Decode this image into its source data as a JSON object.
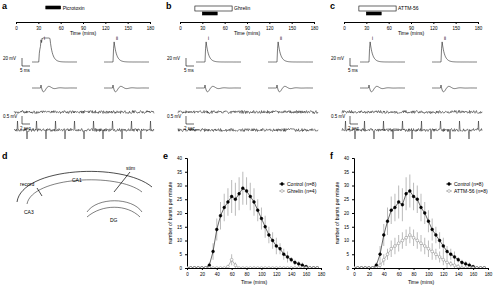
{
  "panel_labels": [
    "a",
    "b",
    "c",
    "d",
    "e",
    "f"
  ],
  "traces": {
    "a": [
      "i",
      "ii",
      "20 mV",
      "5 ms",
      "0.5 mV",
      "2 sec"
    ],
    "b": [
      "i",
      "ii",
      "20 mV",
      "5 ms",
      "0.5 mV",
      "2 sec"
    ],
    "c": [
      "i",
      "ii",
      "20 mV",
      "5 ms",
      "0.5 mV",
      "2 sec"
    ]
  },
  "diagram": {
    "labels": [
      "record",
      "stim",
      "CA1",
      "CA3",
      "DG"
    ]
  },
  "chart_data": [
    {
      "type": "timeline",
      "xlim": [
        0,
        180
      ],
      "xticks": [
        0,
        30,
        60,
        90,
        120,
        150,
        180
      ],
      "x_label": "Time (mins)",
      "bars": [
        {
          "label": "Picrotoxin",
          "start": 40,
          "end": 60,
          "color": "#000000"
        }
      ]
    },
    {
      "type": "timeline",
      "xlim": [
        0,
        180
      ],
      "xticks": [
        0,
        30,
        60,
        90,
        120,
        150,
        180
      ],
      "x_label": "Time (mins)",
      "bars": [
        {
          "label": "Ghrelin",
          "start": 20,
          "end": 70,
          "color": "#ffffff"
        },
        {
          "start": 30,
          "end": 50,
          "color": "#000000"
        }
      ]
    },
    {
      "type": "timeline",
      "xlim": [
        0,
        180
      ],
      "xticks": [
        0,
        30,
        60,
        90,
        120,
        150,
        180
      ],
      "x_label": "Time (mins)",
      "bars": [
        {
          "label": "ATTM-56",
          "start": 20,
          "end": 70,
          "color": "#ffffff"
        },
        {
          "start": 30,
          "end": 50,
          "color": "#000000"
        }
      ]
    },
    {
      "type": "line",
      "x_label": "Time (mins)",
      "y_label": "number of bursts per minute",
      "xlim": [
        0,
        180
      ],
      "xticks": [
        0,
        20,
        40,
        60,
        80,
        100,
        120,
        140,
        160,
        180
      ],
      "ylim": [
        0,
        40
      ],
      "yticks": [
        0,
        5,
        10,
        15,
        20,
        25,
        30,
        35,
        40
      ],
      "grid": false,
      "legend": "upper right",
      "x": [
        0,
        5,
        10,
        15,
        20,
        25,
        30,
        35,
        40,
        45,
        50,
        55,
        60,
        65,
        70,
        75,
        80,
        85,
        90,
        95,
        100,
        105,
        110,
        115,
        120,
        125,
        130,
        135,
        140,
        145,
        150,
        155,
        160,
        165,
        170,
        175
      ],
      "series": [
        {
          "name": "Control (n=8)",
          "color": "#000000",
          "marker": "circle",
          "values": [
            0,
            0,
            0,
            0,
            0,
            0,
            1,
            6,
            14,
            19,
            22,
            24,
            26,
            25,
            27,
            29,
            28,
            26,
            24,
            21,
            18,
            15,
            12,
            10,
            8,
            7,
            5,
            4,
            3,
            2,
            1.5,
            1,
            0.5,
            0,
            0,
            0
          ],
          "errors": [
            0,
            0,
            0,
            0,
            0,
            0,
            1,
            3,
            4,
            5,
            5,
            5,
            6,
            6,
            6,
            6,
            5,
            5,
            5,
            4,
            4,
            4,
            3,
            3,
            3,
            2,
            2,
            2,
            1,
            1,
            1,
            1,
            0.5,
            0,
            0,
            0
          ]
        },
        {
          "name": "Ghrelin (n=4)",
          "color": "#808080",
          "marker": "circle-open",
          "values": [
            0,
            0,
            0,
            0,
            0,
            0,
            0,
            0,
            0,
            0,
            0,
            0.5,
            3,
            1,
            0,
            0,
            0,
            0,
            0,
            0,
            0,
            0,
            0,
            0,
            0,
            0,
            0,
            0,
            0,
            0,
            0,
            0,
            0,
            0,
            0,
            0
          ],
          "errors": [
            0,
            0,
            0,
            0,
            0,
            0,
            0,
            0,
            0,
            0,
            0,
            0.5,
            2,
            1,
            0,
            0,
            0,
            0,
            0,
            0,
            0,
            0,
            0,
            0,
            0,
            0,
            0,
            0,
            0,
            0,
            0,
            0,
            0,
            0,
            0,
            0
          ]
        }
      ]
    },
    {
      "type": "line",
      "x_label": "Time (mins)",
      "y_label": "number of bursts per minute",
      "xlim": [
        0,
        180
      ],
      "xticks": [
        0,
        20,
        40,
        60,
        80,
        100,
        120,
        140,
        160,
        180
      ],
      "ylim": [
        0,
        40
      ],
      "yticks": [
        0,
        5,
        10,
        15,
        20,
        25,
        30,
        35,
        40
      ],
      "grid": false,
      "legend": "upper right",
      "x": [
        0,
        5,
        10,
        15,
        20,
        25,
        30,
        35,
        40,
        45,
        50,
        55,
        60,
        65,
        70,
        75,
        80,
        85,
        90,
        95,
        100,
        105,
        110,
        115,
        120,
        125,
        130,
        135,
        140,
        145,
        150,
        155,
        160,
        165,
        170,
        175
      ],
      "series": [
        {
          "name": "Control (n=8)",
          "color": "#000000",
          "marker": "circle",
          "values": [
            0,
            0,
            0,
            0,
            0,
            0,
            1,
            5,
            12,
            17,
            21,
            22,
            24,
            23,
            27,
            28,
            26,
            25,
            22,
            20,
            17,
            14,
            12,
            10,
            8,
            6,
            5,
            4,
            3,
            2,
            1.5,
            1,
            0.5,
            0,
            0,
            0
          ],
          "errors": [
            0,
            0,
            0,
            0,
            0,
            0,
            1,
            3,
            4,
            5,
            5,
            5,
            6,
            6,
            6,
            6,
            5,
            5,
            5,
            4,
            4,
            4,
            3,
            3,
            3,
            2,
            2,
            2,
            1,
            1,
            1,
            1,
            0.5,
            0,
            0,
            0
          ]
        },
        {
          "name": "ATTM-56 (n=8)",
          "color": "#808080",
          "marker": "circle-open",
          "values": [
            0,
            0,
            0,
            0,
            0,
            0,
            0,
            1,
            3,
            5,
            7,
            8,
            9,
            10,
            11,
            12,
            11,
            10,
            9,
            8,
            7,
            6,
            5,
            4,
            3,
            2,
            1.5,
            1,
            0.5,
            0,
            0,
            0,
            0,
            0,
            0,
            0
          ],
          "errors": [
            0,
            0,
            0,
            0,
            0,
            0,
            0,
            1,
            2,
            2,
            3,
            3,
            3,
            3,
            3,
            3,
            3,
            3,
            3,
            3,
            3,
            3,
            2,
            2,
            2,
            2,
            1,
            1,
            1,
            1,
            0.5,
            0,
            0,
            0,
            0,
            0
          ]
        }
      ]
    }
  ]
}
